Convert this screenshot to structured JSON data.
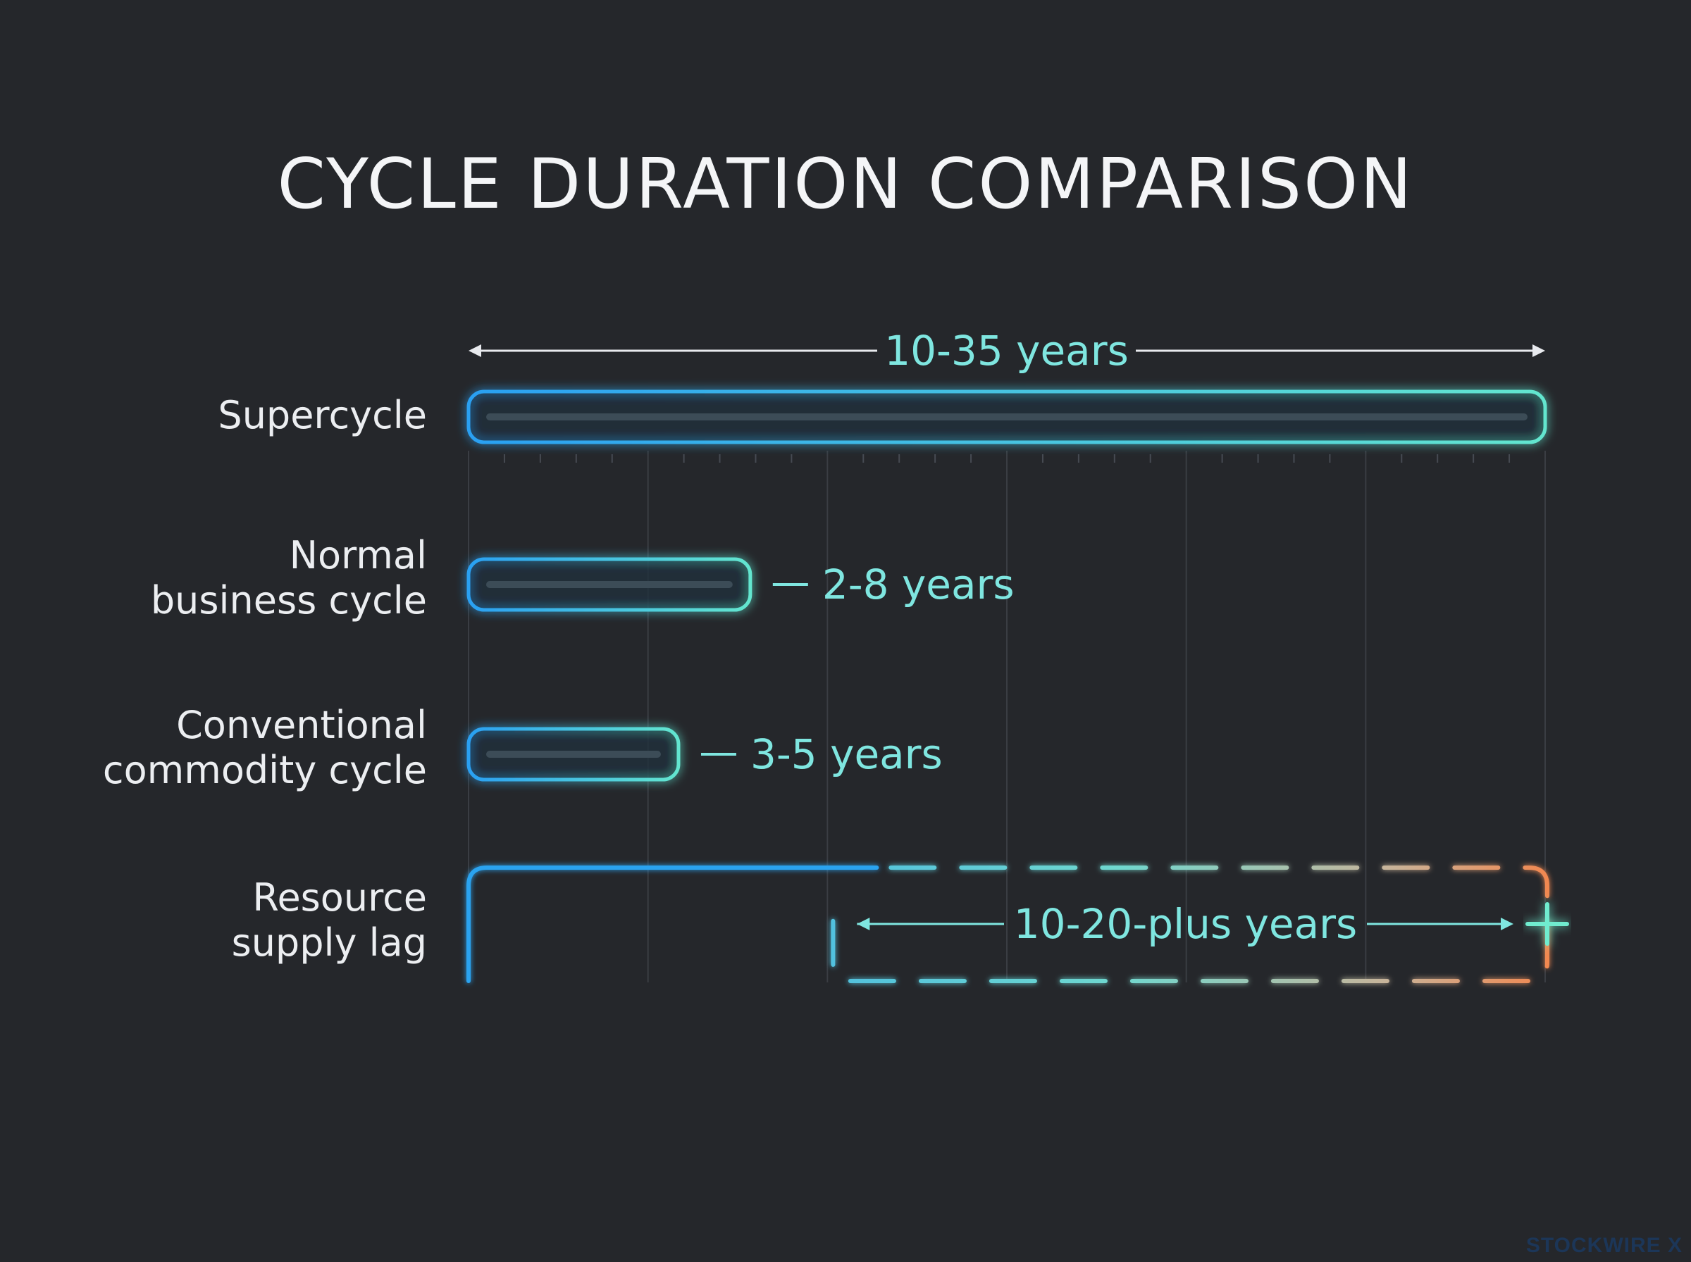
{
  "chart_data": {
    "type": "bar",
    "title": "CYCLE DURATION COMPARISON",
    "categories": [
      [
        "Supercycle"
      ],
      [
        "Normal",
        "business cycle"
      ],
      [
        "Conventional",
        "commodity cycle"
      ],
      [
        "Resource",
        "supply lag"
      ]
    ],
    "ranges": [
      {
        "label": "10-35 years",
        "min": 10,
        "max": 35
      },
      {
        "label": "2-8 years",
        "min": 2,
        "max": 8
      },
      {
        "label": "3-5 years",
        "min": 3,
        "max": 5
      },
      {
        "label": "10-20-plus years",
        "min": 10,
        "max": 20,
        "open_ended": true
      }
    ],
    "grid": true,
    "xlim": [
      0,
      30
    ],
    "colors": {
      "bar_start": "#2ba3f0",
      "bar_end": "#5ee3d0",
      "open_end": "#f08a5a",
      "label_text": "#7fe6e0"
    }
  },
  "watermark": "STOCKWIRE X"
}
